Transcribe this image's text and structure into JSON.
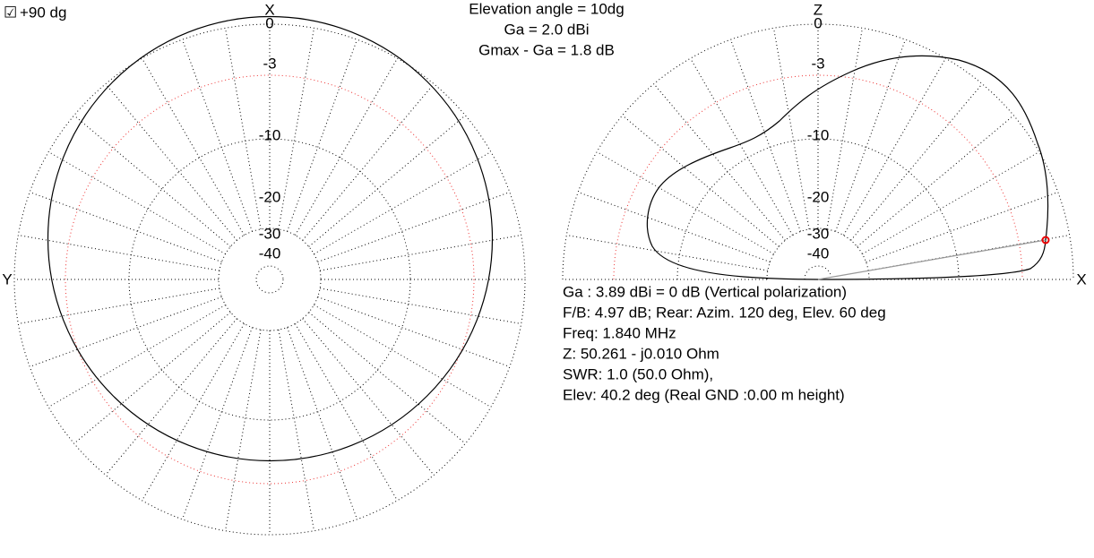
{
  "header": {
    "checkbox_label": "+90 dg",
    "lines": [
      "Elevation angle =  10dg",
      "Ga = 2.0 dBi",
      "Gmax - Ga = 1.8 dB"
    ]
  },
  "left_plot": {
    "top_axis": "X",
    "left_axis": "Y",
    "ring_labels": [
      "0",
      "-3",
      "-10",
      "-20",
      "-30",
      "-40"
    ]
  },
  "right_plot": {
    "top_axis": "Z",
    "right_axis": "X",
    "ring_labels": [
      "0",
      "-3",
      "-10",
      "-20",
      "-30",
      "-40"
    ]
  },
  "info": [
    "Ga : 3.89 dBi = 0 dB  (Vertical polarization)",
    "F/B: 4.97 dB; Rear: Azim. 120 deg,  Elev. 60 deg",
    "Freq: 1.840 MHz",
    "Z: 50.261 - j0.010 Ohm",
    "SWR: 1.0 (50.0 Ohm),",
    "Elev: 40.2 deg (Real GND  :0.00 m height)"
  ]
}
